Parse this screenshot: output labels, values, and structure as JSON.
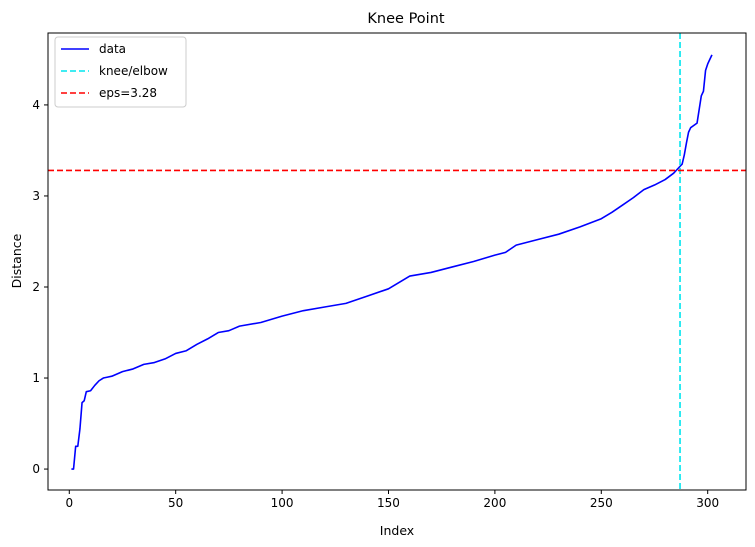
{
  "chart_data": {
    "type": "line",
    "title": "Knee Point",
    "xlabel": "Index",
    "ylabel": "Distance",
    "xlim": [
      -10,
      318
    ],
    "ylim": [
      -0.23,
      4.79
    ],
    "xticks": [
      0,
      50,
      100,
      150,
      200,
      250,
      300
    ],
    "yticks": [
      0,
      1,
      2,
      3,
      4
    ],
    "grid": false,
    "legend_position": "top-left",
    "colors": {
      "data": "#0000ff",
      "knee": "#00e5ee",
      "eps": "#ff0000"
    },
    "series": [
      {
        "name": "data",
        "style": "solid",
        "x": [
          1,
          2,
          3,
          4,
          5,
          6,
          7,
          8,
          10,
          12,
          14,
          16,
          18,
          20,
          25,
          30,
          35,
          40,
          45,
          50,
          55,
          60,
          65,
          70,
          75,
          80,
          90,
          100,
          110,
          120,
          130,
          140,
          150,
          160,
          170,
          180,
          190,
          200,
          205,
          210,
          220,
          230,
          240,
          250,
          255,
          260,
          265,
          270,
          275,
          280,
          284,
          286,
          288,
          289,
          290,
          291,
          292,
          295,
          297,
          298,
          299,
          300,
          301,
          302
        ],
        "y": [
          0.0,
          0.0,
          0.25,
          0.25,
          0.44,
          0.73,
          0.75,
          0.85,
          0.86,
          0.92,
          0.97,
          1.0,
          1.01,
          1.02,
          1.07,
          1.1,
          1.15,
          1.17,
          1.21,
          1.27,
          1.3,
          1.37,
          1.43,
          1.5,
          1.52,
          1.57,
          1.61,
          1.68,
          1.74,
          1.78,
          1.82,
          1.9,
          1.98,
          2.12,
          2.16,
          2.22,
          2.28,
          2.35,
          2.38,
          2.46,
          2.52,
          2.58,
          2.66,
          2.75,
          2.82,
          2.9,
          2.98,
          3.07,
          3.12,
          3.18,
          3.25,
          3.3,
          3.35,
          3.45,
          3.58,
          3.7,
          3.75,
          3.8,
          4.1,
          4.15,
          4.38,
          4.45,
          4.5,
          4.55
        ]
      }
    ],
    "reference_lines": [
      {
        "name": "knee/elbow",
        "orientation": "vertical",
        "value": 287,
        "style": "dashed"
      },
      {
        "name": "eps=3.28",
        "orientation": "horizontal",
        "value": 3.28,
        "style": "dashed"
      }
    ]
  }
}
